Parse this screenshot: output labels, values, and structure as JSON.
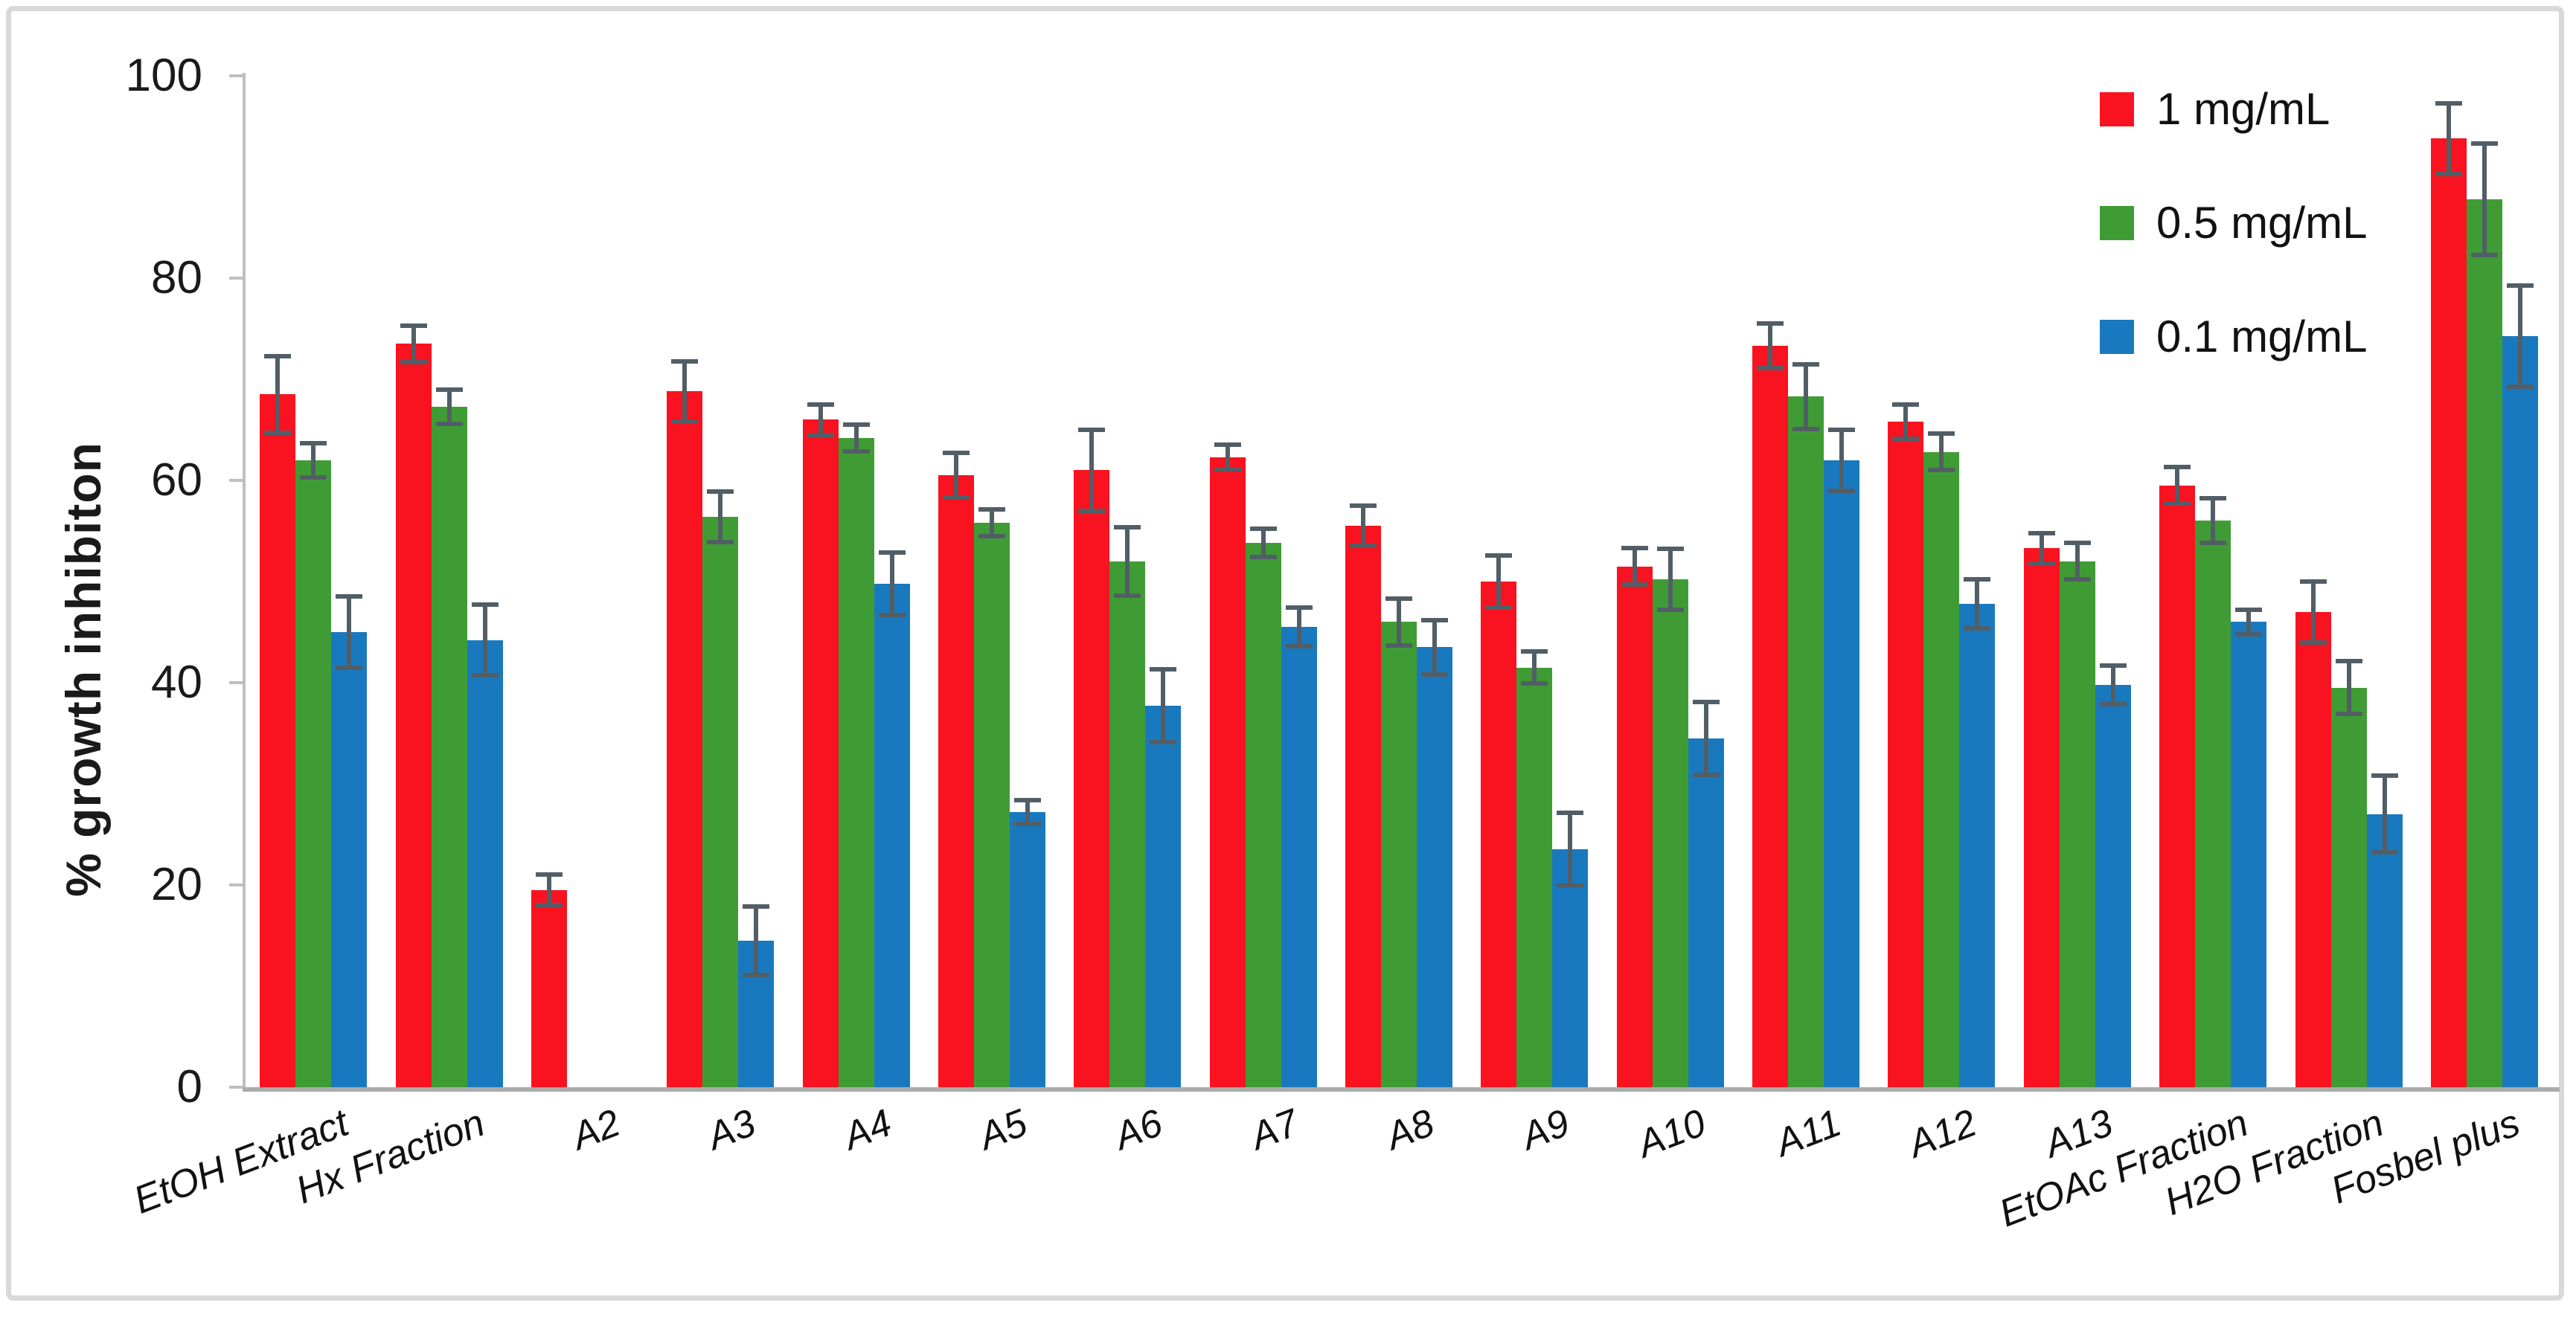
{
  "figure": {
    "background": "#ffffff",
    "border_color": "#d9d9d9"
  },
  "chart_data": {
    "type": "bar",
    "title": "",
    "xlabel": "",
    "ylabel": "% growth inhibiton",
    "ylim": [
      0,
      100
    ],
    "yticks": [
      0,
      20,
      40,
      60,
      80,
      100
    ],
    "grid": false,
    "legend_position": "top-right",
    "axis_color": "#bfbfbf",
    "baseline_color": "#ababab",
    "error_bar_color": "#525e66",
    "categories": [
      "EtOH Extract",
      "Hx Fraction",
      "A2",
      "A3",
      "A4",
      "A5",
      "A6",
      "A7",
      "A8",
      "A9",
      "A10",
      "A11",
      "A12",
      "A13",
      "EtOAc Fraction",
      "H2O Fraction",
      "Fosbel plus"
    ],
    "series": [
      {
        "name": "1 mg/mL",
        "color": "#f9121f",
        "values": [
          68.5,
          73.5,
          19.5,
          68.8,
          66.0,
          60.5,
          61.0,
          62.3,
          55.5,
          50.0,
          51.5,
          73.3,
          65.8,
          53.3,
          59.5,
          47.0,
          93.8
        ],
        "errors": [
          3.8,
          1.8,
          1.5,
          3.0,
          1.5,
          2.2,
          4.0,
          1.2,
          2.0,
          2.6,
          1.8,
          2.2,
          1.7,
          1.5,
          1.8,
          3.0,
          3.5
        ]
      },
      {
        "name": "0.5 mg/mL",
        "color": "#3f9c35",
        "values": [
          62.0,
          67.3,
          null,
          56.4,
          64.2,
          55.8,
          52.0,
          53.8,
          46.0,
          41.5,
          50.2,
          68.3,
          62.8,
          52.0,
          56.0,
          39.5,
          87.8
        ],
        "errors": [
          1.7,
          1.7,
          null,
          2.5,
          1.3,
          1.3,
          3.4,
          1.4,
          2.3,
          1.6,
          3.0,
          3.2,
          1.8,
          1.8,
          2.2,
          2.6,
          5.5
        ]
      },
      {
        "name": "0.1 mg/mL",
        "color": "#1979be",
        "values": [
          45.0,
          44.2,
          null,
          14.5,
          49.8,
          27.2,
          37.7,
          45.5,
          43.5,
          23.5,
          34.5,
          62.0,
          47.8,
          39.8,
          46.0,
          27.0,
          74.3
        ],
        "errors": [
          3.5,
          3.5,
          null,
          3.4,
          3.1,
          1.2,
          3.6,
          1.9,
          2.7,
          3.6,
          3.6,
          3.0,
          2.4,
          1.9,
          1.2,
          3.8,
          5.0
        ]
      }
    ]
  }
}
